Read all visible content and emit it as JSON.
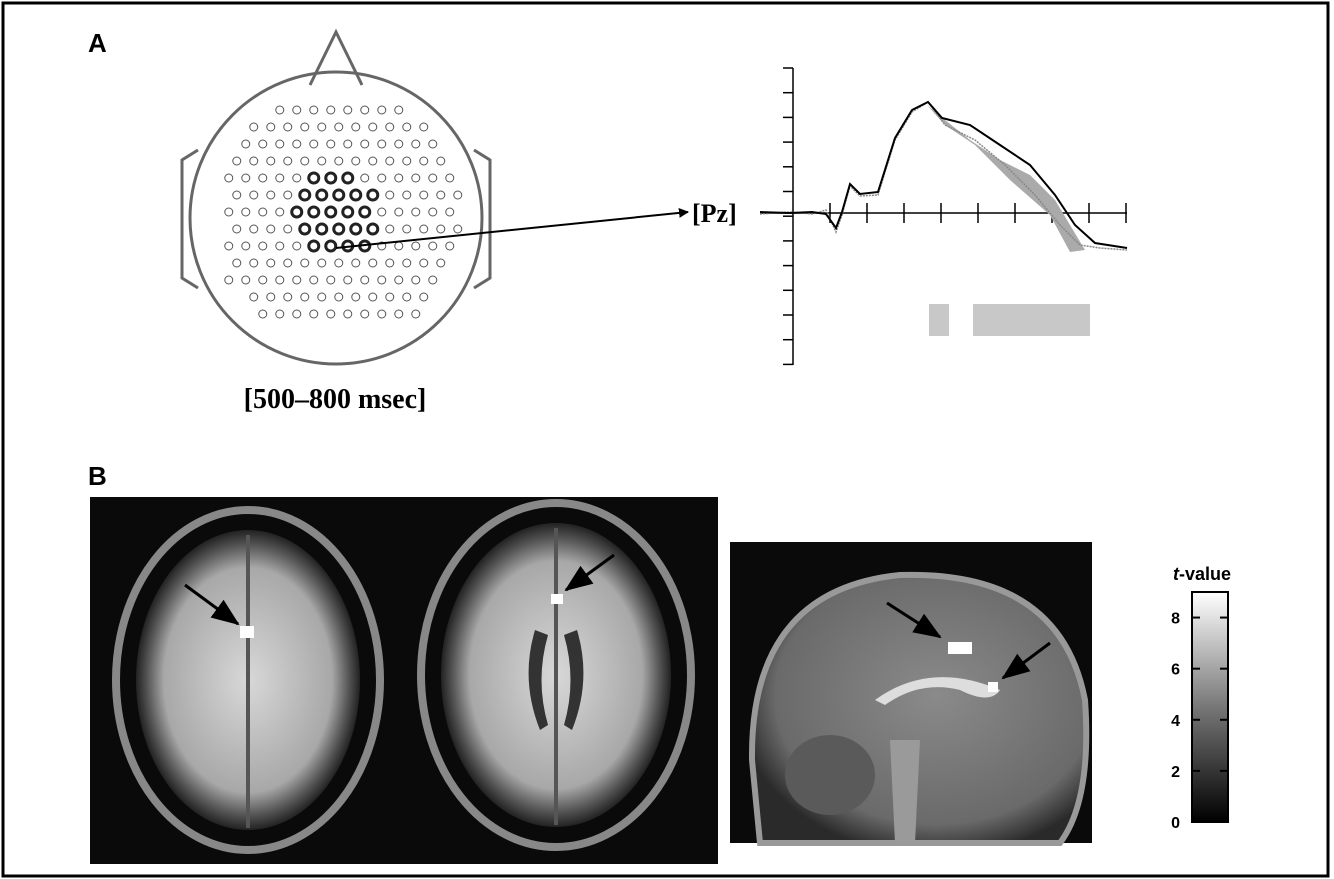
{
  "panel_a": {
    "label": "A",
    "time_window": "[500–800 msec]",
    "electrode": "[Pz]"
  },
  "panel_b": {
    "label": "B",
    "colorbar": {
      "title_italic": "t",
      "title_rest": "-value",
      "lim": [
        0,
        9
      ],
      "ticks": [
        0,
        2,
        4,
        6,
        8
      ]
    }
  }
}
